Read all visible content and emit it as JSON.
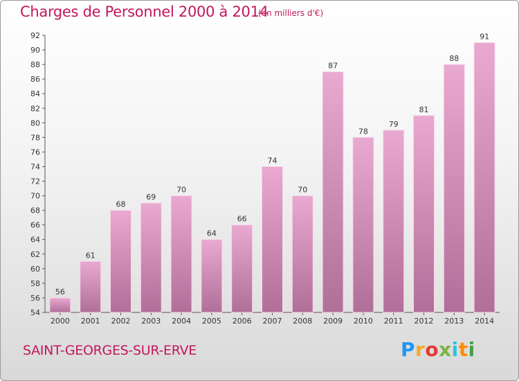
{
  "header": {
    "title": "Charges de Personnel 2000 à 2014",
    "subtitle": "(en milliers d'€)"
  },
  "footer": {
    "commune": "SAINT-GEORGES-SUR-ERVE",
    "logo": "Proxiti"
  },
  "colors": {
    "bar_light": "#e9a9d0",
    "bar_dark": "#b06f98",
    "text_accent": "#c2185b"
  },
  "chart_data": {
    "type": "bar",
    "title": "Charges de Personnel 2000 à 2014",
    "subtitle": "(en milliers d'€)",
    "categories": [
      "2000",
      "2001",
      "2002",
      "2003",
      "2004",
      "2005",
      "2006",
      "2007",
      "2008",
      "2009",
      "2010",
      "2011",
      "2012",
      "2013",
      "2014"
    ],
    "values": [
      56,
      61,
      68,
      69,
      70,
      64,
      66,
      74,
      70,
      87,
      78,
      79,
      81,
      88,
      91
    ],
    "ylim": [
      54,
      92
    ],
    "yticks": [
      54,
      56,
      58,
      60,
      62,
      64,
      66,
      68,
      70,
      72,
      74,
      76,
      78,
      80,
      82,
      84,
      86,
      88,
      90,
      92
    ],
    "grid": false,
    "legend": "none"
  }
}
